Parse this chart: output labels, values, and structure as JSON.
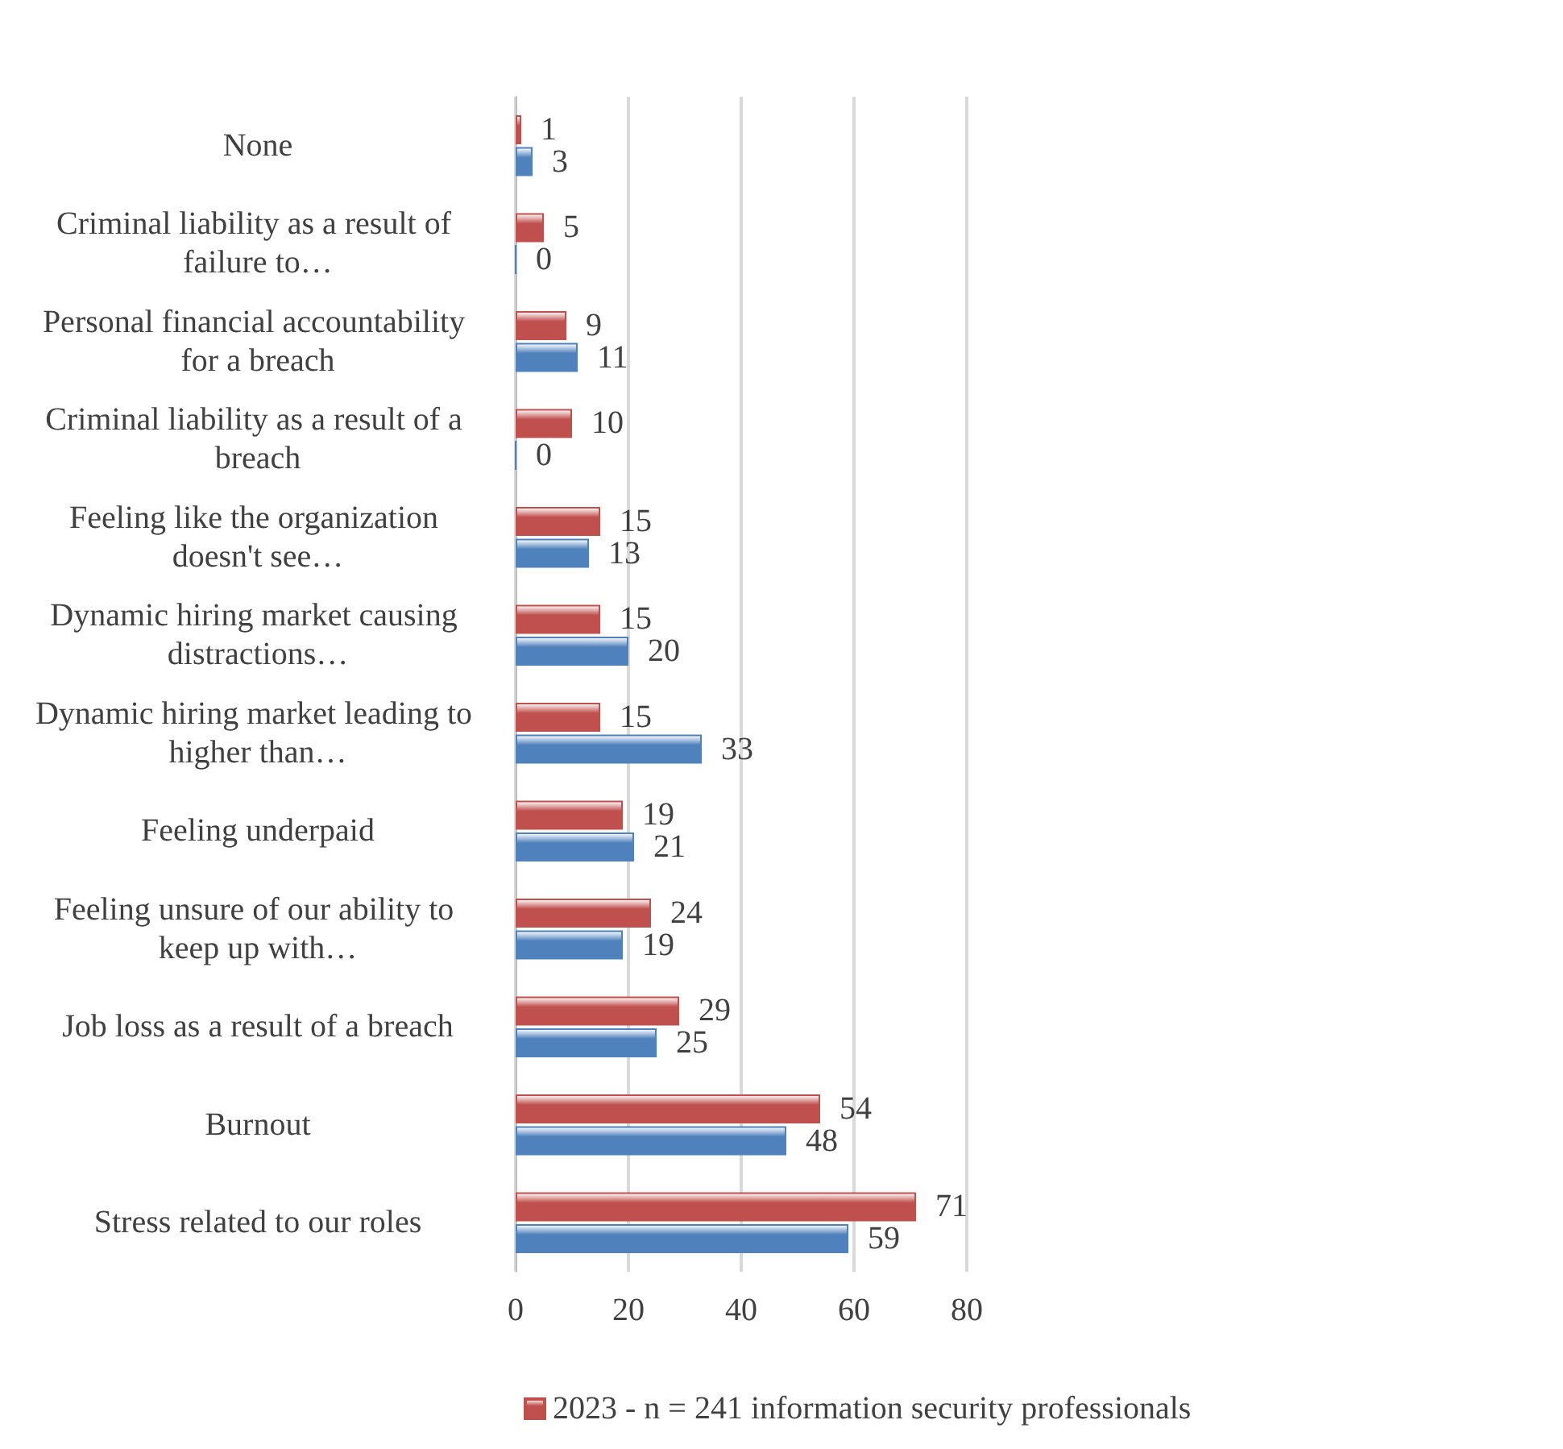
{
  "chart_data": {
    "type": "bar",
    "orientation": "horizontal",
    "categories": [
      "None",
      "Criminal liability as a result of failure to…",
      "Personal financial accountability for a breach",
      "Criminal liability as a result of a breach",
      "Feeling like the organization doesn't see…",
      "Dynamic hiring market causing distractions…",
      "Dynamic hiring market leading to higher than…",
      "Feeling underpaid",
      "Feeling unsure of our ability to keep up with…",
      "Job loss as a result of a breach",
      "Burnout",
      "Stress related to our roles"
    ],
    "series": [
      {
        "name": "2023 - n = 241 information security professionals",
        "color": "#c0504d",
        "values": [
          1,
          5,
          9,
          10,
          15,
          15,
          15,
          19,
          24,
          29,
          54,
          71
        ]
      },
      {
        "color": "#4f81bd",
        "values": [
          3,
          0,
          11,
          0,
          13,
          20,
          33,
          21,
          19,
          25,
          48,
          59
        ]
      }
    ],
    "xlim": [
      0,
      80
    ],
    "xticks": [
      0,
      20,
      40,
      60,
      80
    ],
    "grid": "x",
    "data_labels": true,
    "legend": "bottom"
  }
}
